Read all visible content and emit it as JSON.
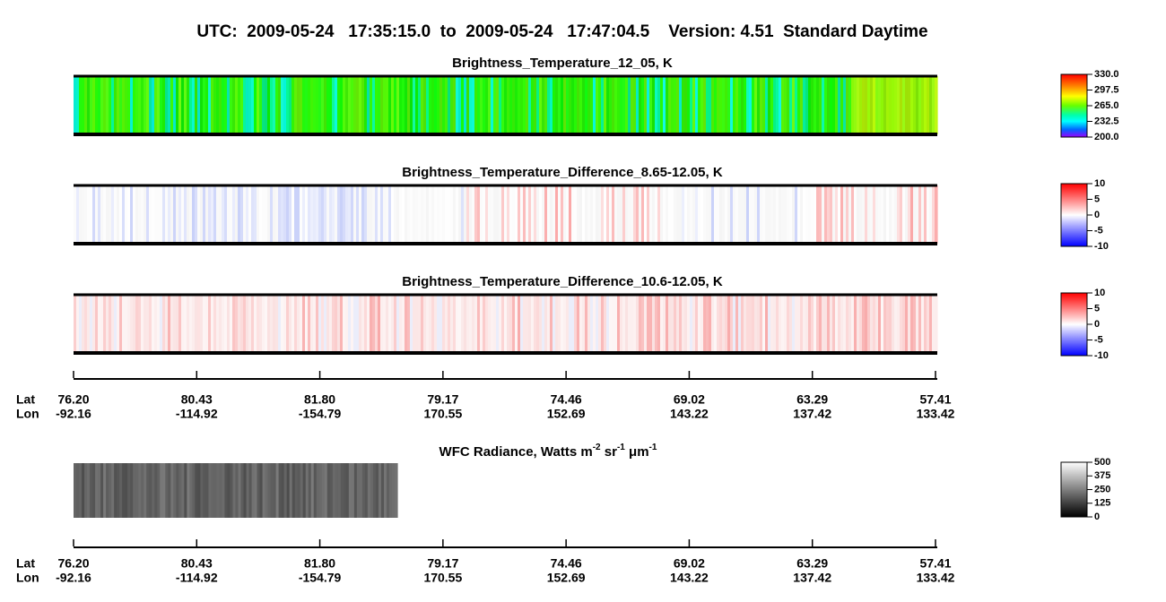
{
  "title": "UTC:  2009-05-24   17:35:15.0  to  2009-05-24   17:47:04.5    Version: 4.51  Standard Daytime",
  "panels": [
    {
      "title": "Brightness_Temperature_12_05, K",
      "colorbar": [
        "330.0",
        "297.5",
        "265.0",
        "232.5",
        "200.0"
      ]
    },
    {
      "title": "Brightness_Temperature_Difference_8.65-12.05, K",
      "colorbar": [
        "10",
        "5",
        "0",
        "-5",
        "-10"
      ]
    },
    {
      "title": "Brightness_Temperature_Difference_10.6-12.05, K",
      "colorbar": [
        "10",
        "5",
        "0",
        "-5",
        "-10"
      ]
    }
  ],
  "radiance": {
    "title": [
      "WFC Radiance, Watts m",
      "-2",
      " sr",
      "-1",
      " μm",
      "-1"
    ],
    "colorbar": [
      "500",
      "375",
      "250",
      "125",
      "0"
    ]
  },
  "axes": [
    {
      "lat_label": "Lat",
      "lon_label": "Lon",
      "lat": [
        "76.20",
        "80.43",
        "81.80",
        "79.17",
        "74.46",
        "69.02",
        "63.29",
        "57.41"
      ],
      "lon": [
        "-92.16",
        "-114.92",
        "-154.79",
        "170.55",
        "152.69",
        "143.22",
        "137.42",
        "133.42"
      ]
    },
    {
      "lat_label": "Lat",
      "lon_label": "Lon",
      "lat": [
        "76.20",
        "80.43",
        "81.80",
        "79.17",
        "74.46",
        "69.02",
        "63.29",
        "57.41"
      ],
      "lon": [
        "-92.16",
        "-114.92",
        "-154.79",
        "170.55",
        "152.69",
        "143.22",
        "137.42",
        "133.42"
      ]
    }
  ]
}
